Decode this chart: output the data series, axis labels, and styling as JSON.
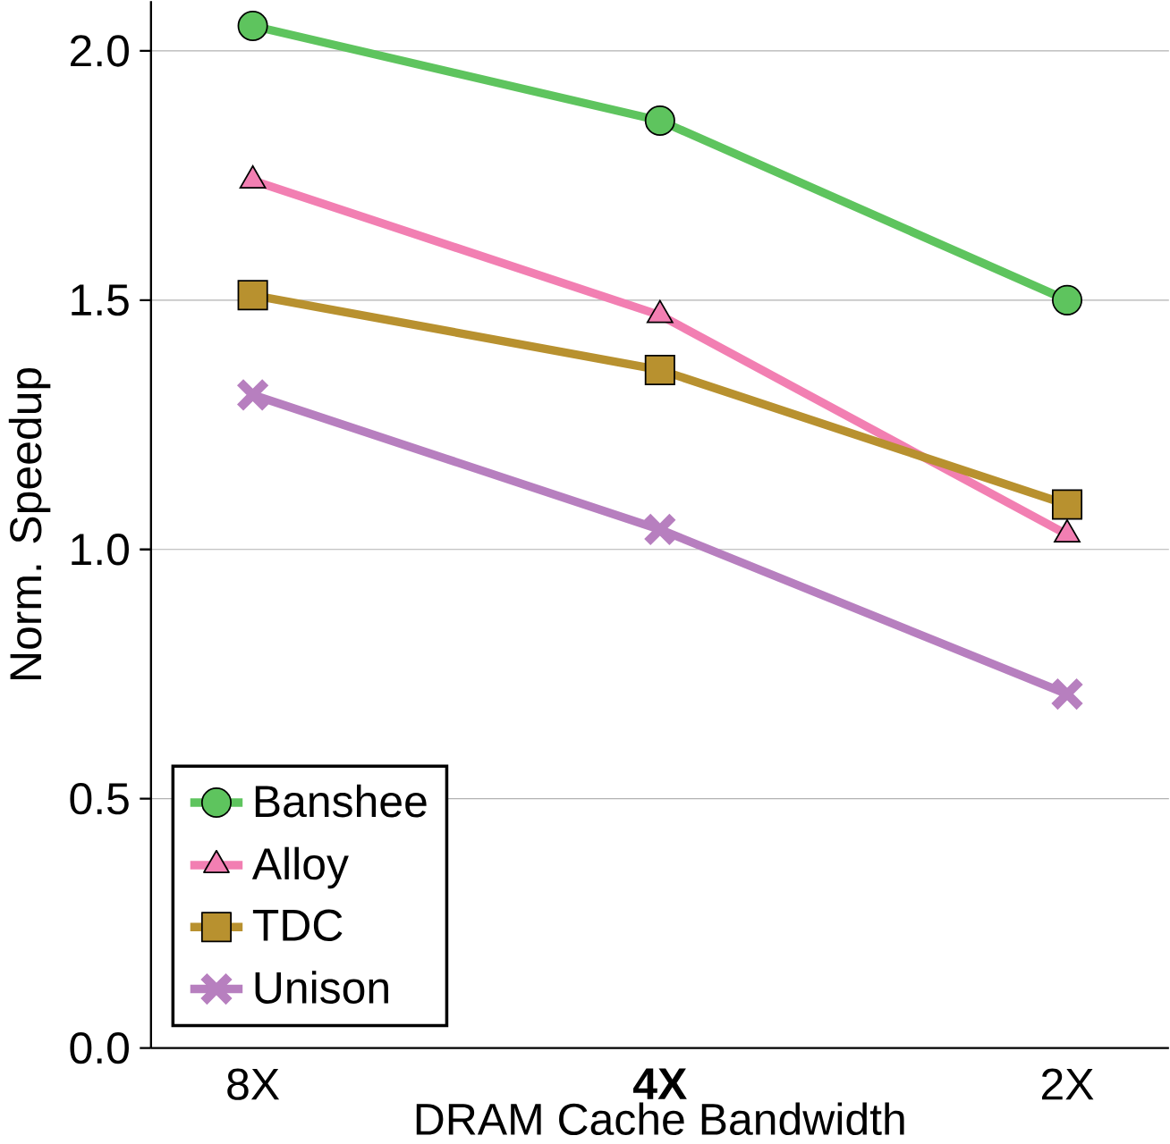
{
  "chart_data": {
    "type": "line",
    "xlabel": "DRAM Cache Bandwidth",
    "ylabel": "Norm. Speedup",
    "categories": [
      "8X",
      "**4X**",
      "2X"
    ],
    "ylim": [
      0,
      2.1
    ],
    "yticks": [
      {
        "value": 0,
        "label": "0.0"
      },
      0.5,
      {
        "value": 1,
        "label": "1.0"
      },
      1.5,
      {
        "value": 2,
        "label": "2.0"
      }
    ],
    "grid": "y",
    "legend": "bottom left",
    "series": [
      {
        "name": "Banshee",
        "color": "#5ec45e",
        "marker": "circle",
        "values": [
          2.05,
          1.86,
          1.5
        ]
      },
      {
        "name": "Alloy",
        "color": "#f27fb2",
        "marker": "triangle",
        "values": [
          1.74,
          1.47,
          1.03
        ]
      },
      {
        "name": "TDC",
        "color": "#b8912f",
        "marker": "square",
        "values": [
          1.51,
          1.36,
          1.09
        ]
      },
      {
        "name": "Unison",
        "color": "#b77fbf",
        "marker": "cross",
        "values": [
          1.31,
          1.04,
          0.71
        ]
      }
    ]
  }
}
